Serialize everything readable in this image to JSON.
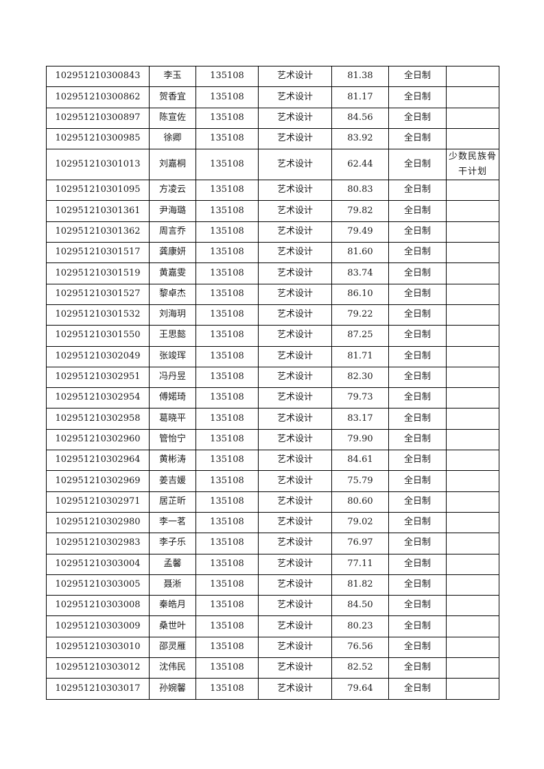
{
  "table": {
    "rows": [
      {
        "id": "102951210300843",
        "name": "李玉",
        "code": "135108",
        "major": "艺术设计",
        "score": "81.38",
        "mode": "全日制",
        "note": ""
      },
      {
        "id": "102951210300862",
        "name": "贺香宜",
        "code": "135108",
        "major": "艺术设计",
        "score": "81.17",
        "mode": "全日制",
        "note": ""
      },
      {
        "id": "102951210300897",
        "name": "陈宣佐",
        "code": "135108",
        "major": "艺术设计",
        "score": "84.56",
        "mode": "全日制",
        "note": ""
      },
      {
        "id": "102951210300985",
        "name": "徐卿",
        "code": "135108",
        "major": "艺术设计",
        "score": "83.92",
        "mode": "全日制",
        "note": ""
      },
      {
        "id": "102951210301013",
        "name": "刘嘉桐",
        "code": "135108",
        "major": "艺术设计",
        "score": "62.44",
        "mode": "全日制",
        "note": "少数民族骨干计划"
      },
      {
        "id": "102951210301095",
        "name": "方凌云",
        "code": "135108",
        "major": "艺术设计",
        "score": "80.83",
        "mode": "全日制",
        "note": ""
      },
      {
        "id": "102951210301361",
        "name": "尹海璐",
        "code": "135108",
        "major": "艺术设计",
        "score": "79.82",
        "mode": "全日制",
        "note": ""
      },
      {
        "id": "102951210301362",
        "name": "周言乔",
        "code": "135108",
        "major": "艺术设计",
        "score": "79.49",
        "mode": "全日制",
        "note": ""
      },
      {
        "id": "102951210301517",
        "name": "龚康妍",
        "code": "135108",
        "major": "艺术设计",
        "score": "81.60",
        "mode": "全日制",
        "note": ""
      },
      {
        "id": "102951210301519",
        "name": "黄嘉雯",
        "code": "135108",
        "major": "艺术设计",
        "score": "83.74",
        "mode": "全日制",
        "note": ""
      },
      {
        "id": "102951210301527",
        "name": "黎卓杰",
        "code": "135108",
        "major": "艺术设计",
        "score": "86.10",
        "mode": "全日制",
        "note": ""
      },
      {
        "id": "102951210301532",
        "name": "刘海玥",
        "code": "135108",
        "major": "艺术设计",
        "score": "79.22",
        "mode": "全日制",
        "note": ""
      },
      {
        "id": "102951210301550",
        "name": "王思懿",
        "code": "135108",
        "major": "艺术设计",
        "score": "87.25",
        "mode": "全日制",
        "note": ""
      },
      {
        "id": "102951210302049",
        "name": "张竣珲",
        "code": "135108",
        "major": "艺术设计",
        "score": "81.71",
        "mode": "全日制",
        "note": ""
      },
      {
        "id": "102951210302951",
        "name": "冯丹昱",
        "code": "135108",
        "major": "艺术设计",
        "score": "82.30",
        "mode": "全日制",
        "note": ""
      },
      {
        "id": "102951210302954",
        "name": "傅婼琦",
        "code": "135108",
        "major": "艺术设计",
        "score": "79.73",
        "mode": "全日制",
        "note": ""
      },
      {
        "id": "102951210302958",
        "name": "葛晓平",
        "code": "135108",
        "major": "艺术设计",
        "score": "83.17",
        "mode": "全日制",
        "note": ""
      },
      {
        "id": "102951210302960",
        "name": "管怡宁",
        "code": "135108",
        "major": "艺术设计",
        "score": "79.90",
        "mode": "全日制",
        "note": ""
      },
      {
        "id": "102951210302964",
        "name": "黄彬涛",
        "code": "135108",
        "major": "艺术设计",
        "score": "84.61",
        "mode": "全日制",
        "note": ""
      },
      {
        "id": "102951210302969",
        "name": "姜吉媛",
        "code": "135108",
        "major": "艺术设计",
        "score": "75.79",
        "mode": "全日制",
        "note": ""
      },
      {
        "id": "102951210302971",
        "name": "居芷昕",
        "code": "135108",
        "major": "艺术设计",
        "score": "80.60",
        "mode": "全日制",
        "note": ""
      },
      {
        "id": "102951210302980",
        "name": "李一茗",
        "code": "135108",
        "major": "艺术设计",
        "score": "79.02",
        "mode": "全日制",
        "note": ""
      },
      {
        "id": "102951210302983",
        "name": "李子乐",
        "code": "135108",
        "major": "艺术设计",
        "score": "76.97",
        "mode": "全日制",
        "note": ""
      },
      {
        "id": "102951210303004",
        "name": "孟馨",
        "code": "135108",
        "major": "艺术设计",
        "score": "77.11",
        "mode": "全日制",
        "note": ""
      },
      {
        "id": "102951210303005",
        "name": "聂淅",
        "code": "135108",
        "major": "艺术设计",
        "score": "81.82",
        "mode": "全日制",
        "note": ""
      },
      {
        "id": "102951210303008",
        "name": "秦皓月",
        "code": "135108",
        "major": "艺术设计",
        "score": "84.50",
        "mode": "全日制",
        "note": ""
      },
      {
        "id": "102951210303009",
        "name": "桑世叶",
        "code": "135108",
        "major": "艺术设计",
        "score": "80.23",
        "mode": "全日制",
        "note": ""
      },
      {
        "id": "102951210303010",
        "name": "邵灵雁",
        "code": "135108",
        "major": "艺术设计",
        "score": "76.56",
        "mode": "全日制",
        "note": ""
      },
      {
        "id": "102951210303012",
        "name": "沈伟民",
        "code": "135108",
        "major": "艺术设计",
        "score": "82.52",
        "mode": "全日制",
        "note": ""
      },
      {
        "id": "102951210303017",
        "name": "孙婉馨",
        "code": "135108",
        "major": "艺术设计",
        "score": "79.64",
        "mode": "全日制",
        "note": ""
      }
    ]
  }
}
